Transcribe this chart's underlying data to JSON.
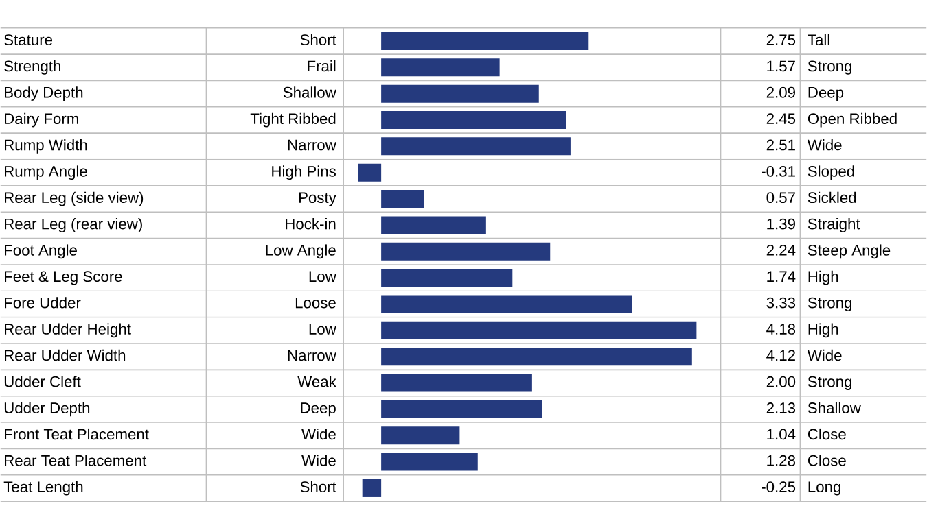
{
  "chart_data": {
    "type": "bar",
    "orientation": "horizontal",
    "color": "#253a7e",
    "categories": [
      "Stature",
      "Strength",
      "Body Depth",
      "Dairy Form",
      "Rump Width",
      "Rump Angle",
      "Rear Leg (side view)",
      "Rear Leg (rear view)",
      "Foot Angle",
      "Feet & Leg Score",
      "Fore Udder",
      "Rear Udder Height",
      "Rear Udder Width",
      "Udder Cleft",
      "Udder Depth",
      "Front Teat Placement",
      "Rear Teat Placement",
      "Teat Length"
    ],
    "values": [
      2.75,
      1.57,
      2.09,
      2.45,
      2.51,
      -0.31,
      0.57,
      1.39,
      2.24,
      1.74,
      3.33,
      4.18,
      4.12,
      2.0,
      2.13,
      1.04,
      1.28,
      -0.25
    ],
    "value_labels": [
      "2.75",
      "1.57",
      "2.09",
      "2.45",
      "2.51",
      "-0.31",
      "0.57",
      "1.39",
      "2.24",
      "1.74",
      "3.33",
      "4.18",
      "4.12",
      "2.00",
      "2.13",
      "1.04",
      "1.28",
      "-0.25"
    ],
    "annotations": [
      "Short",
      "Frail",
      "Shallow",
      "Tight Ribbed",
      "Narrow",
      "High Pins",
      "Posty",
      "Hock-in",
      "Low Angle",
      "Low",
      "Loose",
      "Low",
      "Narrow",
      "Weak",
      "Deep",
      "Wide",
      "Wide",
      "Short",
      "Tall",
      "Strong",
      "Deep",
      "Open Ribbed",
      "Wide",
      "Sloped",
      "Sickled",
      "Straight",
      "Steep Angle",
      "High",
      "Strong",
      "High",
      "Wide",
      "Strong",
      "Shallow",
      "Close",
      "Close",
      "Long"
    ],
    "xlim": [
      -0.5,
      4.5
    ]
  }
}
